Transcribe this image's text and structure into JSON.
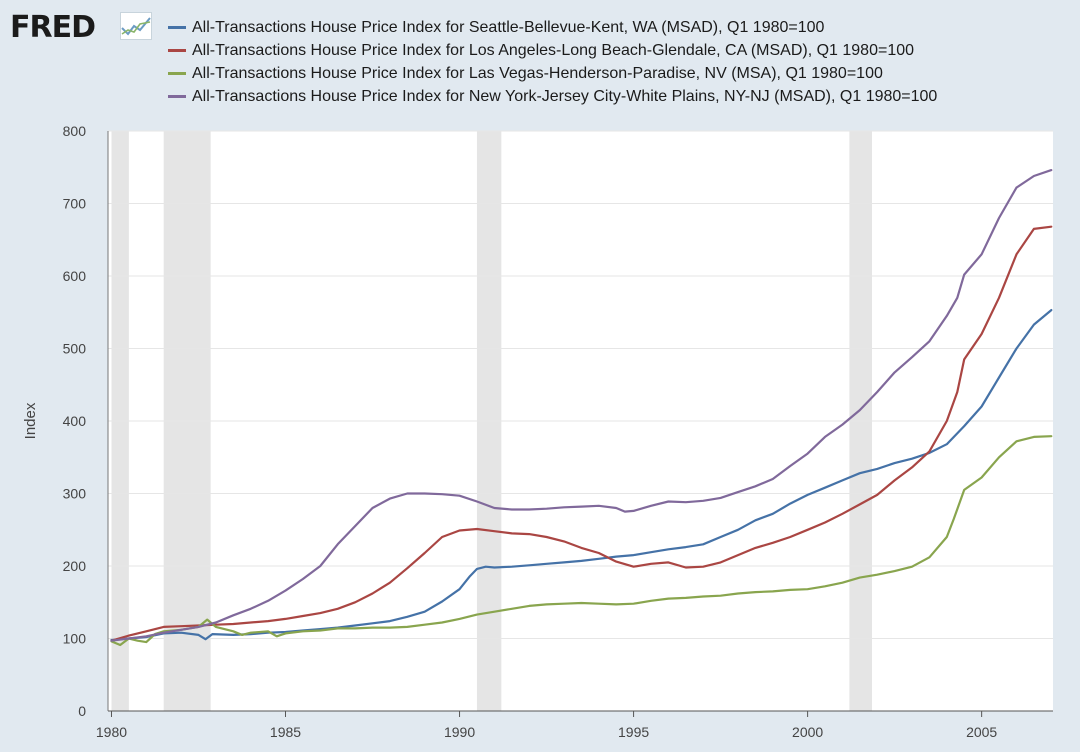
{
  "logo": {
    "text": "FRED",
    "icon": "fred-chart-icon"
  },
  "chart_data": {
    "type": "line",
    "title": "",
    "xlabel": "",
    "ylabel": "Index",
    "xlim": [
      1979.9,
      2007.05
    ],
    "ylim": [
      0,
      800
    ],
    "x_ticks": [
      "1980",
      "1985",
      "1990",
      "1995",
      "2000",
      "2005"
    ],
    "y_ticks": [
      "0",
      "100",
      "200",
      "300",
      "400",
      "500",
      "600",
      "700",
      "800"
    ],
    "grid": true,
    "legend_position": "top",
    "recessions": [
      [
        1980.0,
        1980.5
      ],
      [
        1981.5,
        1982.85
      ],
      [
        1990.5,
        1991.2
      ],
      [
        2001.2,
        2001.85
      ]
    ],
    "series": [
      {
        "name": "All-Transactions House Price Index for Seattle-Bellevue-Kent, WA (MSAD), Q1 1980=100",
        "color": "#4572a7",
        "points": [
          [
            1980,
            98
          ],
          [
            1980.5,
            100
          ],
          [
            1981,
            102
          ],
          [
            1981.5,
            107
          ],
          [
            1982,
            108
          ],
          [
            1982.5,
            105
          ],
          [
            1982.7,
            99
          ],
          [
            1982.9,
            106
          ],
          [
            1983.5,
            105
          ],
          [
            1984,
            106
          ],
          [
            1984.5,
            108
          ],
          [
            1985,
            109
          ],
          [
            1985.5,
            111
          ],
          [
            1986,
            113
          ],
          [
            1986.5,
            115
          ],
          [
            1987,
            118
          ],
          [
            1987.5,
            121
          ],
          [
            1988,
            124
          ],
          [
            1988.5,
            130
          ],
          [
            1989,
            137
          ],
          [
            1989.5,
            151
          ],
          [
            1990,
            168
          ],
          [
            1990.3,
            186
          ],
          [
            1990.5,
            196
          ],
          [
            1990.75,
            199
          ],
          [
            1991,
            198
          ],
          [
            1991.5,
            199
          ],
          [
            1992,
            201
          ],
          [
            1992.5,
            203
          ],
          [
            1993,
            205
          ],
          [
            1993.5,
            207
          ],
          [
            1994,
            210
          ],
          [
            1994.5,
            213
          ],
          [
            1995,
            215
          ],
          [
            1995.5,
            219
          ],
          [
            1996,
            223
          ],
          [
            1996.5,
            226
          ],
          [
            1997,
            230
          ],
          [
            1997.5,
            240
          ],
          [
            1998,
            250
          ],
          [
            1998.5,
            263
          ],
          [
            1999,
            272
          ],
          [
            1999.5,
            286
          ],
          [
            2000,
            298
          ],
          [
            2000.5,
            308
          ],
          [
            2001,
            318
          ],
          [
            2001.5,
            328
          ],
          [
            2002,
            334
          ],
          [
            2002.5,
            342
          ],
          [
            2003,
            348
          ],
          [
            2003.5,
            356
          ],
          [
            2004,
            368
          ],
          [
            2004.5,
            393
          ],
          [
            2005,
            420
          ],
          [
            2005.5,
            460
          ],
          [
            2006,
            500
          ],
          [
            2006.5,
            533
          ],
          [
            2007,
            553
          ]
        ]
      },
      {
        "name": "All-Transactions House Price Index for Los Angeles-Long Beach-Glendale, CA (MSAD), Q1 1980=100",
        "color": "#aa4643",
        "points": [
          [
            1980,
            97
          ],
          [
            1980.5,
            104
          ],
          [
            1981,
            110
          ],
          [
            1981.5,
            116
          ],
          [
            1982,
            117
          ],
          [
            1982.5,
            118
          ],
          [
            1983,
            119
          ],
          [
            1983.5,
            120
          ],
          [
            1984,
            122
          ],
          [
            1984.5,
            124
          ],
          [
            1985,
            127
          ],
          [
            1985.5,
            131
          ],
          [
            1986,
            135
          ],
          [
            1986.5,
            141
          ],
          [
            1987,
            150
          ],
          [
            1987.5,
            162
          ],
          [
            1988,
            177
          ],
          [
            1988.5,
            197
          ],
          [
            1989,
            218
          ],
          [
            1989.5,
            240
          ],
          [
            1990,
            249
          ],
          [
            1990.5,
            251
          ],
          [
            1991,
            248
          ],
          [
            1991.5,
            245
          ],
          [
            1992,
            244
          ],
          [
            1992.5,
            240
          ],
          [
            1993,
            234
          ],
          [
            1993.5,
            225
          ],
          [
            1994,
            218
          ],
          [
            1994.5,
            206
          ],
          [
            1995,
            199
          ],
          [
            1995.5,
            203
          ],
          [
            1996,
            205
          ],
          [
            1996.5,
            198
          ],
          [
            1997,
            199
          ],
          [
            1997.5,
            205
          ],
          [
            1998,
            215
          ],
          [
            1998.5,
            225
          ],
          [
            1999,
            232
          ],
          [
            1999.5,
            240
          ],
          [
            2000,
            250
          ],
          [
            2000.5,
            260
          ],
          [
            2001,
            272
          ],
          [
            2001.5,
            285
          ],
          [
            2002,
            298
          ],
          [
            2002.5,
            318
          ],
          [
            2003,
            336
          ],
          [
            2003.5,
            358
          ],
          [
            2004,
            400
          ],
          [
            2004.3,
            440
          ],
          [
            2004.5,
            485
          ],
          [
            2005,
            520
          ],
          [
            2005.5,
            570
          ],
          [
            2006,
            630
          ],
          [
            2006.5,
            665
          ],
          [
            2007,
            668
          ]
        ]
      },
      {
        "name": "All-Transactions House Price Index for Las Vegas-Henderson-Paradise, NV (MSA), Q1 1980=100",
        "color": "#89a54e",
        "points": [
          [
            1980,
            96
          ],
          [
            1980.25,
            91
          ],
          [
            1980.5,
            100
          ],
          [
            1980.75,
            97
          ],
          [
            1981,
            95
          ],
          [
            1981.25,
            106
          ],
          [
            1981.5,
            110
          ],
          [
            1982,
            112
          ],
          [
            1982.5,
            116
          ],
          [
            1982.75,
            126
          ],
          [
            1983,
            116
          ],
          [
            1983.5,
            110
          ],
          [
            1983.75,
            105
          ],
          [
            1984,
            108
          ],
          [
            1984.5,
            110
          ],
          [
            1984.75,
            103
          ],
          [
            1985,
            107
          ],
          [
            1985.5,
            110
          ],
          [
            1986,
            111
          ],
          [
            1986.5,
            114
          ],
          [
            1987,
            114
          ],
          [
            1987.5,
            115
          ],
          [
            1988,
            115
          ],
          [
            1988.5,
            116
          ],
          [
            1989,
            119
          ],
          [
            1989.5,
            122
          ],
          [
            1990,
            127
          ],
          [
            1990.5,
            133
          ],
          [
            1991,
            137
          ],
          [
            1991.5,
            141
          ],
          [
            1992,
            145
          ],
          [
            1992.5,
            147
          ],
          [
            1993,
            148
          ],
          [
            1993.5,
            149
          ],
          [
            1994,
            148
          ],
          [
            1994.5,
            147
          ],
          [
            1995,
            148
          ],
          [
            1995.5,
            152
          ],
          [
            1996,
            155
          ],
          [
            1996.5,
            156
          ],
          [
            1997,
            158
          ],
          [
            1997.5,
            159
          ],
          [
            1998,
            162
          ],
          [
            1998.5,
            164
          ],
          [
            1999,
            165
          ],
          [
            1999.5,
            167
          ],
          [
            2000,
            168
          ],
          [
            2000.5,
            172
          ],
          [
            2001,
            177
          ],
          [
            2001.5,
            184
          ],
          [
            2002,
            188
          ],
          [
            2002.5,
            193
          ],
          [
            2003,
            199
          ],
          [
            2003.5,
            212
          ],
          [
            2004,
            240
          ],
          [
            2004.2,
            265
          ],
          [
            2004.5,
            305
          ],
          [
            2005,
            322
          ],
          [
            2005.5,
            350
          ],
          [
            2006,
            372
          ],
          [
            2006.5,
            378
          ],
          [
            2007,
            379
          ]
        ]
      },
      {
        "name": "All-Transactions House Price Index for New York-Jersey City-White Plains, NY-NJ (MSAD), Q1 1980=100",
        "color": "#80699b",
        "points": [
          [
            1980,
            97
          ],
          [
            1980.5,
            100
          ],
          [
            1981,
            103
          ],
          [
            1981.5,
            108
          ],
          [
            1982,
            112
          ],
          [
            1982.5,
            116
          ],
          [
            1983,
            122
          ],
          [
            1983.5,
            132
          ],
          [
            1984,
            141
          ],
          [
            1984.5,
            152
          ],
          [
            1985,
            166
          ],
          [
            1985.5,
            182
          ],
          [
            1986,
            200
          ],
          [
            1986.5,
            230
          ],
          [
            1987,
            255
          ],
          [
            1987.5,
            280
          ],
          [
            1988,
            293
          ],
          [
            1988.5,
            300
          ],
          [
            1989,
            300
          ],
          [
            1989.5,
            299
          ],
          [
            1990,
            297
          ],
          [
            1990.5,
            289
          ],
          [
            1991,
            280
          ],
          [
            1991.5,
            278
          ],
          [
            1992,
            278
          ],
          [
            1992.5,
            279
          ],
          [
            1993,
            281
          ],
          [
            1993.5,
            282
          ],
          [
            1994,
            283
          ],
          [
            1994.5,
            280
          ],
          [
            1994.75,
            275
          ],
          [
            1995,
            276
          ],
          [
            1995.5,
            283
          ],
          [
            1996,
            289
          ],
          [
            1996.5,
            288
          ],
          [
            1997,
            290
          ],
          [
            1997.5,
            294
          ],
          [
            1998,
            302
          ],
          [
            1998.5,
            310
          ],
          [
            1999,
            320
          ],
          [
            1999.5,
            338
          ],
          [
            2000,
            355
          ],
          [
            2000.5,
            378
          ],
          [
            2001,
            395
          ],
          [
            2001.5,
            415
          ],
          [
            2002,
            440
          ],
          [
            2002.5,
            467
          ],
          [
            2003,
            488
          ],
          [
            2003.5,
            510
          ],
          [
            2004,
            545
          ],
          [
            2004.3,
            570
          ],
          [
            2004.5,
            602
          ],
          [
            2005,
            630
          ],
          [
            2005.5,
            680
          ],
          [
            2006,
            722
          ],
          [
            2006.5,
            738
          ],
          [
            2007,
            746
          ]
        ]
      }
    ]
  }
}
